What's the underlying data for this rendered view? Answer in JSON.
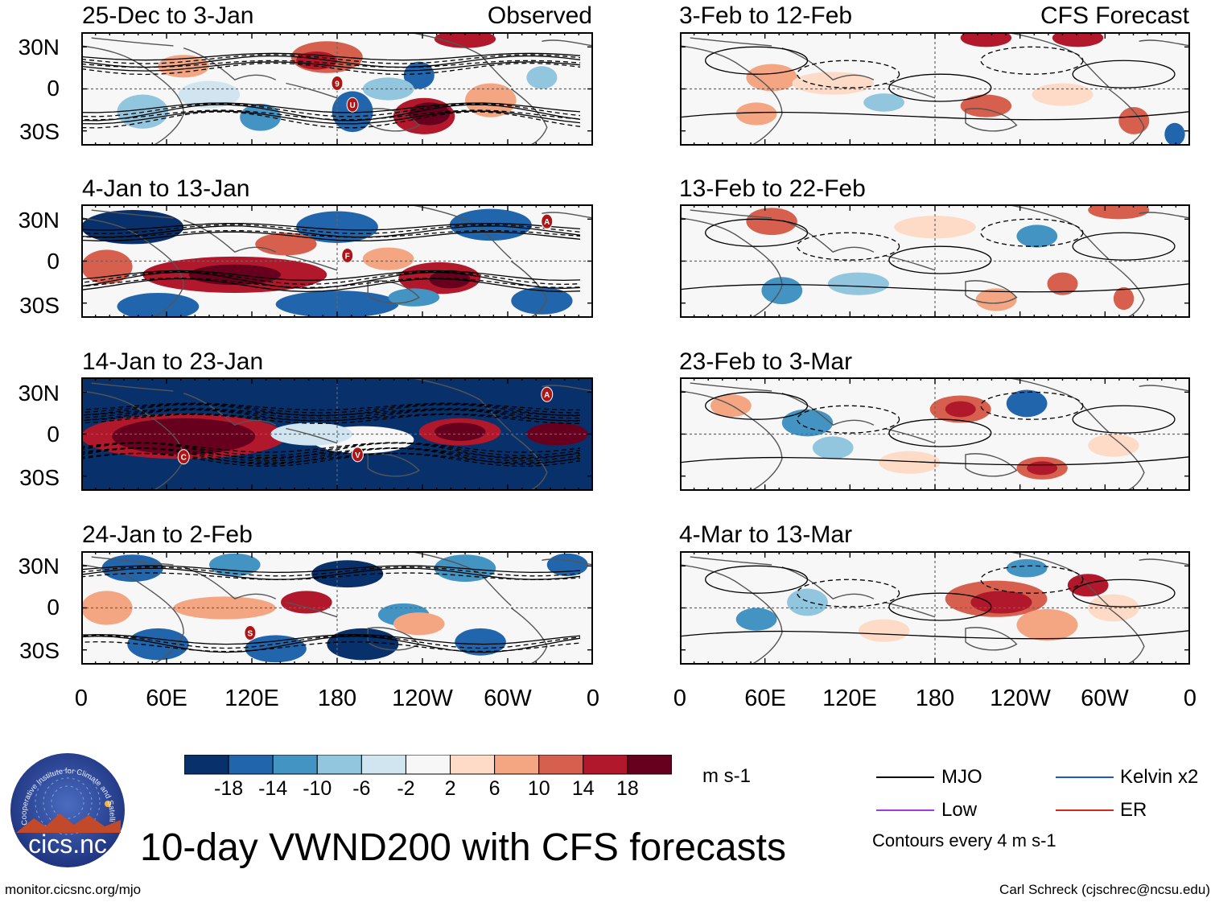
{
  "colors": {
    "scale": [
      "#08306b",
      "#2166ac",
      "#4393c3",
      "#92c5de",
      "#d1e5f0",
      "#f7f7f7",
      "#fddbc7",
      "#f4a582",
      "#d6604d",
      "#b2182b",
      "#67001f"
    ],
    "mjo": "#000000",
    "low": "#a33be0",
    "kelvin": "#1f55d6",
    "er": "#d52a1a",
    "coast": "#555555"
  },
  "lat_labels": [
    "30N",
    "0",
    "30S"
  ],
  "lon_labels": [
    "0",
    "60E",
    "120E",
    "180",
    "120W",
    "60W",
    "0"
  ],
  "panels_left": [
    {
      "title": "25-Dec to 3-Jan",
      "tag": "Observed"
    },
    {
      "title": "4-Jan to 13-Jan",
      "tag": ""
    },
    {
      "title": "14-Jan to 23-Jan",
      "tag": ""
    },
    {
      "title": "24-Jan to 2-Feb",
      "tag": ""
    }
  ],
  "panels_right": [
    {
      "title": "3-Feb to 12-Feb",
      "tag": "CFS Forecast"
    },
    {
      "title": "13-Feb to 22-Feb",
      "tag": ""
    },
    {
      "title": "23-Feb to 3-Mar",
      "tag": ""
    },
    {
      "title": "4-Mar to 13-Mar",
      "tag": ""
    }
  ],
  "storm_markers": [
    {
      "panel": 0,
      "labels": [
        "9",
        "U"
      ]
    },
    {
      "panel": 1,
      "labels": [
        "A",
        "F"
      ]
    },
    {
      "panel": 2,
      "labels": [
        "A",
        "C",
        "V"
      ]
    },
    {
      "panel": 3,
      "labels": [
        "S"
      ]
    }
  ],
  "colorbar": {
    "ticks": [
      "-18",
      "-14",
      "-10",
      "-6",
      "-2",
      "2",
      "6",
      "10",
      "14",
      "18"
    ],
    "units": "m s-1"
  },
  "legend": {
    "items": [
      {
        "label": "MJO",
        "color": "#000000"
      },
      {
        "label": "Kelvin x2",
        "color": "#1f55d6"
      },
      {
        "label": "Low",
        "color": "#a33be0"
      },
      {
        "label": "ER",
        "color": "#d52a1a"
      }
    ],
    "contour_note": "Contours every 4 m s-1"
  },
  "logo": {
    "text": "cics.nc",
    "arc_text": "Cooperative Institute for Climate and Satellites"
  },
  "main_title": "10-day VWND200 with CFS forecasts",
  "footer_left": "monitor.cicsnc.org/mjo",
  "footer_right": "Carl Schreck (cjschrec@ncsu.edu)"
}
